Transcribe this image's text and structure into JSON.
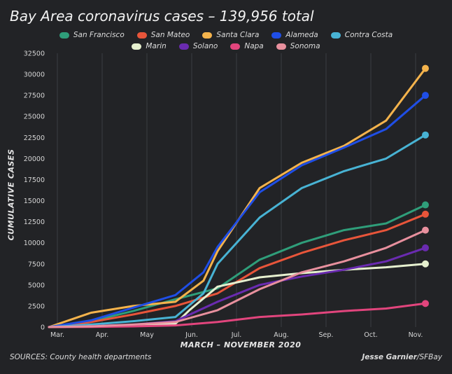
{
  "chart_data": {
    "type": "line",
    "title": "Bay Area coronavirus cases – 139,956 total",
    "xlabel": "MARCH – NOVEMBER 2020",
    "ylabel": "CUMULATIVE CASES",
    "ylim": [
      0,
      32500
    ],
    "yticks": [
      "0",
      "2500",
      "5000",
      "7500",
      "10000",
      "12500",
      "15000",
      "17500",
      "20000",
      "22500",
      "25000",
      "27500",
      "30000",
      "32500"
    ],
    "x_tick_labels": [
      "Mar.",
      "Apr.",
      "May",
      "Jun.",
      "Jul.",
      "Aug.",
      "Sep.",
      "Oct.",
      "Nov."
    ],
    "x_range_days": [
      0,
      270
    ],
    "grid": "vertical",
    "legend_position": "top",
    "series": [
      {
        "name": "San Francisco",
        "color": "#2f9e7a",
        "x": [
          0,
          30,
          60,
          90,
          120,
          150,
          180,
          210,
          240,
          268
        ],
        "values": [
          0,
          700,
          1900,
          3300,
          4600,
          8000,
          10000,
          11500,
          12300,
          14500
        ]
      },
      {
        "name": "San Mateo",
        "color": "#e8553a",
        "x": [
          0,
          30,
          60,
          90,
          120,
          150,
          180,
          210,
          240,
          268
        ],
        "values": [
          0,
          600,
          1500,
          2500,
          4000,
          7000,
          8800,
          10300,
          11500,
          13400
        ]
      },
      {
        "name": "Santa Clara",
        "color": "#f4b34c",
        "x": [
          0,
          30,
          60,
          90,
          110,
          120,
          150,
          180,
          210,
          240,
          268
        ],
        "values": [
          0,
          1700,
          2500,
          3000,
          5500,
          9000,
          16500,
          19500,
          21500,
          24500,
          30700
        ]
      },
      {
        "name": "Alameda",
        "color": "#1f4ee6",
        "x": [
          0,
          30,
          60,
          90,
          110,
          120,
          150,
          180,
          210,
          240,
          268
        ],
        "values": [
          0,
          800,
          2300,
          3800,
          6500,
          9500,
          16000,
          19200,
          21300,
          23500,
          27500
        ]
      },
      {
        "name": "Contra Costa",
        "color": "#48b3d4",
        "x": [
          0,
          30,
          60,
          90,
          110,
          120,
          150,
          180,
          210,
          240,
          268
        ],
        "values": [
          0,
          300,
          700,
          1200,
          4000,
          7500,
          13000,
          16500,
          18500,
          20000,
          22800
        ]
      },
      {
        "name": "Marin",
        "color": "#e6f0cf",
        "x": [
          0,
          30,
          60,
          90,
          100,
          120,
          150,
          180,
          210,
          240,
          268
        ],
        "values": [
          0,
          100,
          200,
          400,
          2000,
          4800,
          5900,
          6400,
          6800,
          7100,
          7500
        ]
      },
      {
        "name": "Solano",
        "color": "#6a2bb0",
        "x": [
          0,
          30,
          60,
          90,
          120,
          150,
          180,
          210,
          240,
          268
        ],
        "values": [
          0,
          100,
          300,
          700,
          3000,
          5000,
          6000,
          6800,
          7800,
          9400
        ]
      },
      {
        "name": "Napa",
        "color": "#e2457d",
        "x": [
          0,
          30,
          60,
          90,
          120,
          150,
          180,
          210,
          240,
          268
        ],
        "values": [
          0,
          20,
          80,
          200,
          600,
          1200,
          1500,
          1900,
          2200,
          2800
        ]
      },
      {
        "name": "Sonoma",
        "color": "#e8909e",
        "x": [
          0,
          30,
          60,
          90,
          120,
          150,
          180,
          210,
          240,
          268
        ],
        "values": [
          0,
          80,
          300,
          600,
          2000,
          4500,
          6500,
          7800,
          9400,
          11500
        ]
      }
    ]
  },
  "footer": {
    "sources": "SOURCES: County health departments",
    "credit_name": "Jesse Garnier",
    "credit_org": "/SFBay"
  }
}
